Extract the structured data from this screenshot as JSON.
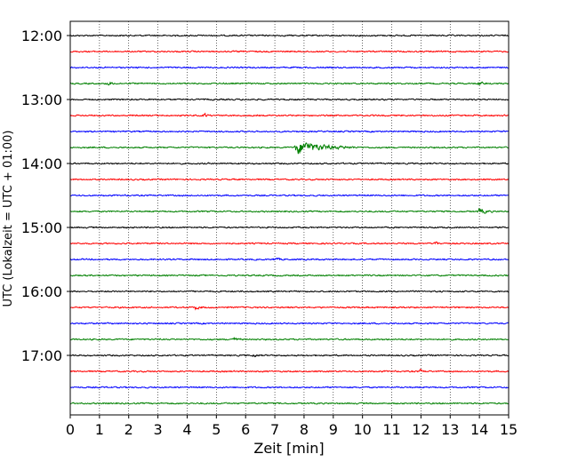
{
  "chart_data": {
    "type": "line",
    "title": "",
    "xlabel": "Zeit  [min]",
    "ylabel": "UTC (Lokalzeit = UTC + 01:00)",
    "xlim": [
      0,
      15
    ],
    "x_ticks": [
      0,
      1,
      2,
      3,
      4,
      5,
      6,
      7,
      8,
      9,
      10,
      11,
      12,
      13,
      14,
      15
    ],
    "x_tick_labels": [
      "0",
      "1",
      "2",
      "3",
      "4",
      "5",
      "6",
      "7",
      "8",
      "9",
      "10",
      "11",
      "12",
      "13",
      "14",
      "15"
    ],
    "y_tick_labels": [
      "12:00",
      "13:00",
      "14:00",
      "15:00",
      "16:00",
      "17:00"
    ],
    "vertical_grid": true,
    "grid_style": "dotted",
    "trace_colors": [
      "#000000",
      "#ff0000",
      "#0000ff",
      "#008000"
    ],
    "rows": [
      {
        "start": "12:00"
      },
      {
        "start": "12:15"
      },
      {
        "start": "12:30"
      },
      {
        "start": "12:45"
      },
      {
        "start": "13:00"
      },
      {
        "start": "13:15"
      },
      {
        "start": "13:30"
      },
      {
        "start": "13:45"
      },
      {
        "start": "14:00"
      },
      {
        "start": "14:15"
      },
      {
        "start": "14:30"
      },
      {
        "start": "14:45"
      },
      {
        "start": "15:00"
      },
      {
        "start": "15:15"
      },
      {
        "start": "15:30"
      },
      {
        "start": "15:45"
      },
      {
        "start": "16:00"
      },
      {
        "start": "16:15"
      },
      {
        "start": "16:30"
      },
      {
        "start": "16:45"
      },
      {
        "start": "17:00"
      },
      {
        "start": "17:15"
      },
      {
        "start": "17:30"
      },
      {
        "start": "17:45"
      }
    ],
    "events": [
      {
        "row": 3,
        "time_min": 1.3,
        "amplitude": 1.2,
        "duration_min": 0.3
      },
      {
        "row": 3,
        "time_min": 14.0,
        "amplitude": 1.0,
        "duration_min": 0.3
      },
      {
        "row": 5,
        "time_min": 4.6,
        "amplitude": 1.3,
        "duration_min": 0.2
      },
      {
        "row": 7,
        "time_min": 7.75,
        "amplitude": 5.0,
        "duration_min": 2.0
      },
      {
        "row": 11,
        "time_min": 14.0,
        "amplitude": 2.0,
        "duration_min": 0.5
      },
      {
        "row": 13,
        "time_min": 12.5,
        "amplitude": 1.3,
        "duration_min": 0.2
      },
      {
        "row": 14,
        "time_min": 7.0,
        "amplitude": 1.0,
        "duration_min": 0.3
      },
      {
        "row": 17,
        "time_min": 4.3,
        "amplitude": 1.2,
        "duration_min": 0.3
      },
      {
        "row": 19,
        "time_min": 5.6,
        "amplitude": 1.0,
        "duration_min": 0.3
      },
      {
        "row": 20,
        "time_min": 6.3,
        "amplitude": 1.0,
        "duration_min": 0.2
      },
      {
        "row": 21,
        "time_min": 12.0,
        "amplitude": 1.0,
        "duration_min": 0.2
      }
    ]
  }
}
